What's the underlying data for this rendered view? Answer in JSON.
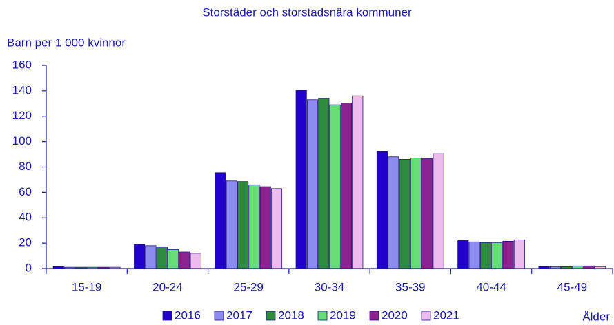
{
  "chart_data": {
    "type": "bar",
    "title": "Storstäder och storstadsnära kommuner",
    "y_label": "Barn per 1 000 kvinnor",
    "x_label": "Ålder",
    "categories": [
      "15-19",
      "20-24",
      "25-29",
      "30-34",
      "35-39",
      "40-44",
      "45-49"
    ],
    "series": [
      {
        "name": "2016",
        "color": "#2200cc",
        "values": [
          1.5,
          19,
          75.5,
          140.5,
          92,
          22,
          1.5
        ]
      },
      {
        "name": "2017",
        "color": "#8c8cf0",
        "values": [
          1,
          18,
          69,
          133,
          88,
          21,
          1.5
        ]
      },
      {
        "name": "2018",
        "color": "#2e8b3e",
        "values": [
          1,
          17,
          68.5,
          134,
          86,
          20.5,
          1.5
        ]
      },
      {
        "name": "2019",
        "color": "#66dd77",
        "values": [
          1,
          15,
          66,
          129,
          87,
          20.5,
          2
        ]
      },
      {
        "name": "2020",
        "color": "#8b2290",
        "values": [
          1,
          13,
          64.5,
          130.5,
          86.5,
          21.5,
          2
        ]
      },
      {
        "name": "2021",
        "color": "#eebbee",
        "values": [
          1,
          12,
          63,
          136,
          90.5,
          22.5,
          1.5
        ]
      }
    ],
    "ylim": [
      0,
      160
    ],
    "yticks": [
      0,
      20,
      40,
      60,
      80,
      100,
      120,
      140,
      160
    ]
  }
}
